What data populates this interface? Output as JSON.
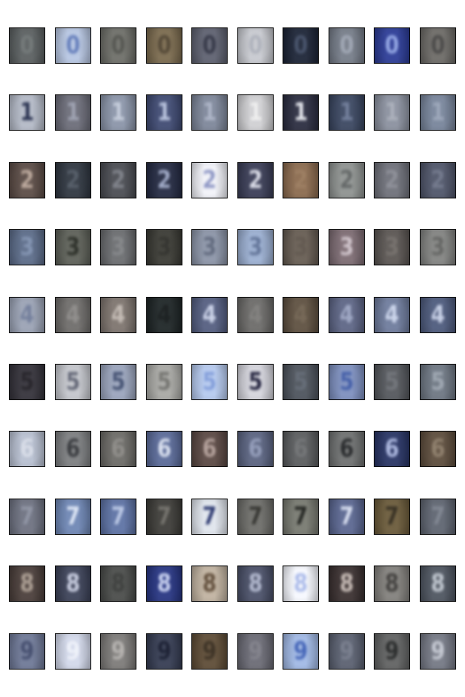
{
  "rows": [
    {
      "class": "0",
      "tiles": [
        {
          "label": "0",
          "bg": "#5a5f60",
          "fg": "#6c7272"
        },
        {
          "label": "0",
          "bg": "#b7c6e2",
          "fg": "#5e78b8"
        },
        {
          "label": "0",
          "bg": "#6d6e68",
          "fg": "#4d4e49"
        },
        {
          "label": "0",
          "bg": "#7a6a4e",
          "fg": "#4b3f2c"
        },
        {
          "label": "0",
          "bg": "#5e6170",
          "fg": "#2d3040"
        },
        {
          "label": "0",
          "bg": "#c7c9cf",
          "fg": "#aaaeb8"
        },
        {
          "label": "0",
          "bg": "#1c2436",
          "fg": "#3e4a63"
        },
        {
          "label": "0",
          "bg": "#757c88",
          "fg": "#9ba2b0"
        },
        {
          "label": "0",
          "bg": "#2c3c96",
          "fg": "#8ea2e2"
        },
        {
          "label": "0",
          "bg": "#6c6a66",
          "fg": "#424140"
        }
      ]
    },
    {
      "class": "1",
      "tiles": [
        {
          "label": "1",
          "bg": "#b3b9c6",
          "fg": "#1f2848"
        },
        {
          "label": "1",
          "bg": "#6b6c78",
          "fg": "#9a9eae"
        },
        {
          "label": "1",
          "bg": "#8a94a8",
          "fg": "#c3cbda"
        },
        {
          "label": "1",
          "bg": "#3f4a72",
          "fg": "#b5c0dc"
        },
        {
          "label": "1",
          "bg": "#7d8699",
          "fg": "#a9b1c4"
        },
        {
          "label": "1",
          "bg": "#cfcfd2",
          "fg": "#eeeeee"
        },
        {
          "label": "1",
          "bg": "#2b2d40",
          "fg": "#e2e4ea"
        },
        {
          "label": "1",
          "bg": "#3a4660",
          "fg": "#6b7896"
        },
        {
          "label": "1",
          "bg": "#8a909e",
          "fg": "#a7acb8"
        },
        {
          "label": "1",
          "bg": "#77849a",
          "fg": "#98a3b7"
        }
      ]
    },
    {
      "class": "2",
      "tiles": [
        {
          "label": "2",
          "bg": "#5a4b45",
          "fg": "#b8a497"
        },
        {
          "label": "2",
          "bg": "#2f3640",
          "fg": "#4d5661"
        },
        {
          "label": "2",
          "bg": "#4a4c52",
          "fg": "#797c84"
        },
        {
          "label": "2",
          "bg": "#242a42",
          "fg": "#9ba5c3"
        },
        {
          "label": "2",
          "bg": "#f1f2f8",
          "fg": "#8a93c2"
        },
        {
          "label": "2",
          "bg": "#3a3d56",
          "fg": "#d9dbe6"
        },
        {
          "label": "2",
          "bg": "#8a6a4e",
          "fg": "#98785a"
        },
        {
          "label": "2",
          "bg": "#8e9290",
          "fg": "#5c6060"
        },
        {
          "label": "2",
          "bg": "#6e7079",
          "fg": "#888a93"
        },
        {
          "label": "2",
          "bg": "#4f5569",
          "fg": "#6c7387"
        }
      ]
    },
    {
      "class": "3",
      "tiles": [
        {
          "label": "3",
          "bg": "#5b6b88",
          "fg": "#7d8fae"
        },
        {
          "label": "3",
          "bg": "#5d6058",
          "fg": "#23261f"
        },
        {
          "label": "3",
          "bg": "#6a6c6f",
          "fg": "#7f8184"
        },
        {
          "label": "3",
          "bg": "#3a3a34",
          "fg": "#2a2a25"
        },
        {
          "label": "3",
          "bg": "#8b94a7",
          "fg": "#5a6378"
        },
        {
          "label": "3",
          "bg": "#9aaed0",
          "fg": "#5b6e94"
        },
        {
          "label": "3",
          "bg": "#665c52",
          "fg": "#5a5047"
        },
        {
          "label": "3",
          "bg": "#7c6b72",
          "fg": "#cdc1c8"
        },
        {
          "label": "3",
          "bg": "#5a5552",
          "fg": "#6f6a66"
        },
        {
          "label": "3",
          "bg": "#828381",
          "fg": "#5d5e5c"
        }
      ]
    },
    {
      "class": "4",
      "tiles": [
        {
          "label": "4",
          "bg": "#9aa2b4",
          "fg": "#6d7997"
        },
        {
          "label": "4",
          "bg": "#6e6c6a",
          "fg": "#8a8886"
        },
        {
          "label": "4",
          "bg": "#7d746e",
          "fg": "#c0b7b0"
        },
        {
          "label": "4",
          "bg": "#1e2526",
          "fg": "#101516"
        },
        {
          "label": "4",
          "bg": "#545e80",
          "fg": "#c8d0e6"
        },
        {
          "label": "4",
          "bg": "#6b6a68",
          "fg": "#7b7a78"
        },
        {
          "label": "4",
          "bg": "#5e5040",
          "fg": "#6e604e"
        },
        {
          "label": "4",
          "bg": "#5d6585",
          "fg": "#9aa3c1"
        },
        {
          "label": "4",
          "bg": "#6e7b9c",
          "fg": "#c9d3ea"
        },
        {
          "label": "4",
          "bg": "#4d5a7c",
          "fg": "#c4cde4"
        }
      ]
    },
    {
      "class": "5",
      "tiles": [
        {
          "label": "5",
          "bg": "#34323a",
          "fg": "#1c1a20"
        },
        {
          "label": "5",
          "bg": "#c4c6cc",
          "fg": "#5c6070"
        },
        {
          "label": "5",
          "bg": "#9aa4bc",
          "fg": "#3c4a6c"
        },
        {
          "label": "5",
          "bg": "#a8a8a4",
          "fg": "#6e6e6a"
        },
        {
          "label": "5",
          "bg": "#b5c9ee",
          "fg": "#7e9ad8"
        },
        {
          "label": "5",
          "bg": "#d4d4dc",
          "fg": "#1a1a36"
        },
        {
          "label": "5",
          "bg": "#4d535c",
          "fg": "#5d6570"
        },
        {
          "label": "5",
          "bg": "#7d8fbe",
          "fg": "#3c58a4"
        },
        {
          "label": "5",
          "bg": "#54575c",
          "fg": "#6b6e74"
        },
        {
          "label": "5",
          "bg": "#6d7682",
          "fg": "#9aa3ae"
        }
      ]
    },
    {
      "class": "6",
      "tiles": [
        {
          "label": "6",
          "bg": "#b7bfd0",
          "fg": "#d6dbe6"
        },
        {
          "label": "6",
          "bg": "#7c7e80",
          "fg": "#303236"
        },
        {
          "label": "6",
          "bg": "#6b6a66",
          "fg": "#8a8884"
        },
        {
          "label": "6",
          "bg": "#5a6a98",
          "fg": "#d7deee"
        },
        {
          "label": "6",
          "bg": "#5a4843",
          "fg": "#b09c96"
        },
        {
          "label": "6",
          "bg": "#5a6380",
          "fg": "#8e98b6"
        },
        {
          "label": "6",
          "bg": "#5a5c5e",
          "fg": "#6c6e70"
        },
        {
          "label": "6",
          "bg": "#6e7070",
          "fg": "#1e2022"
        },
        {
          "label": "6",
          "bg": "#283464",
          "fg": "#a9b5de"
        },
        {
          "label": "6",
          "bg": "#5c4c3c",
          "fg": "#8a7a66"
        }
      ]
    },
    {
      "class": "7",
      "tiles": [
        {
          "label": "7",
          "bg": "#6d7180",
          "fg": "#8b90a0"
        },
        {
          "label": "7",
          "bg": "#6e86b4",
          "fg": "#dbe4f4"
        },
        {
          "label": "7",
          "bg": "#5d72a4",
          "fg": "#b8c6e4"
        },
        {
          "label": "7",
          "bg": "#3d3c38",
          "fg": "#6e6c66"
        },
        {
          "label": "7",
          "bg": "#dfe4ec",
          "fg": "#23306a"
        },
        {
          "label": "7",
          "bg": "#6c6c68",
          "fg": "#2c2c28"
        },
        {
          "label": "7",
          "bg": "#777970",
          "fg": "#1a1c18"
        },
        {
          "label": "7",
          "bg": "#5a6690",
          "fg": "#d5dcee"
        },
        {
          "label": "7",
          "bg": "#6a5a3a",
          "fg": "#2d2618"
        },
        {
          "label": "7",
          "bg": "#5e6470",
          "fg": "#7a808c"
        }
      ]
    },
    {
      "class": "8",
      "tiles": [
        {
          "label": "8",
          "bg": "#4a3e3a",
          "fg": "#a89a8e"
        },
        {
          "label": "8",
          "bg": "#3c4258",
          "fg": "#c5cade"
        },
        {
          "label": "8",
          "bg": "#4a4c4a",
          "fg": "#353735"
        },
        {
          "label": "8",
          "bg": "#273582",
          "fg": "#c7d0f0"
        },
        {
          "label": "8",
          "bg": "#c0b2a0",
          "fg": "#5a4632"
        },
        {
          "label": "8",
          "bg": "#4a5068",
          "fg": "#aeb5cc"
        },
        {
          "label": "8",
          "bg": "#f6f8fe",
          "fg": "#a8b8e8"
        },
        {
          "label": "8",
          "bg": "#3a3030",
          "fg": "#c2b6b0"
        },
        {
          "label": "8",
          "bg": "#82807c",
          "fg": "#3a3836"
        },
        {
          "label": "8",
          "bg": "#4e5560",
          "fg": "#bcc3cc"
        }
      ]
    },
    {
      "class": "9",
      "tiles": [
        {
          "label": "9",
          "bg": "#6e7896",
          "fg": "#3c4668"
        },
        {
          "label": "9",
          "bg": "#d2d8ea",
          "fg": "#eef1f9"
        },
        {
          "label": "9",
          "bg": "#7c7a78",
          "fg": "#b2afac"
        },
        {
          "label": "9",
          "bg": "#353c52",
          "fg": "#11162a"
        },
        {
          "label": "9",
          "bg": "#5e4c36",
          "fg": "#33281a"
        },
        {
          "label": "9",
          "bg": "#6a6a74",
          "fg": "#7c7c86"
        },
        {
          "label": "9",
          "bg": "#a0b8e4",
          "fg": "#3c5eb4"
        },
        {
          "label": "9",
          "bg": "#5a6070",
          "fg": "#727888"
        },
        {
          "label": "9",
          "bg": "#616262",
          "fg": "#202222"
        },
        {
          "label": "9",
          "bg": "#747884",
          "fg": "#c2c6d0"
        }
      ]
    }
  ]
}
